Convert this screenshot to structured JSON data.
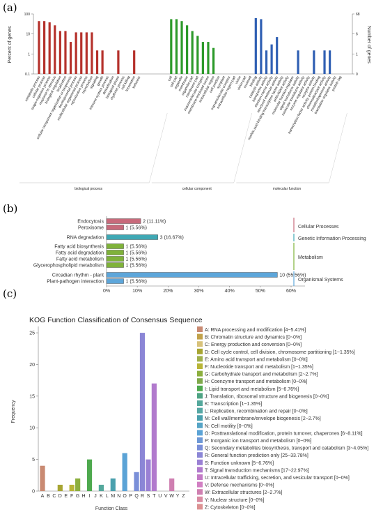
{
  "colors": {
    "biological_process": "#b5312b",
    "cellular_component": "#2c9a2a",
    "molecular_function": "#2f5fb3",
    "cellular_processes": "#c86a7b",
    "genetic_info": "#3fa8b4",
    "metabolism": "#7fb23a",
    "organismal": "#5da6da"
  },
  "chart_data": [
    {
      "id": "a",
      "panel_label": "(a)",
      "type": "bar",
      "ylabel_left": "Percent of genes",
      "ylabel_right": "Number of genes",
      "scale": "log",
      "left_ticks": [
        "100",
        "10",
        "1",
        "0.1"
      ],
      "right_ticks": [
        "68",
        "6",
        "1",
        "0"
      ],
      "ylim": [
        0.1,
        100
      ],
      "groups": [
        {
          "name": "biological process",
          "color_key": "biological_process",
          "start": 0,
          "end": 24
        },
        {
          "name": "cellular component",
          "color_key": "cellular_component",
          "start": 25,
          "end": 40
        },
        {
          "name": "molecular function",
          "color_key": "molecular_function",
          "start": 41,
          "end": 58
        }
      ],
      "categories": [
        "metabolic process",
        "cellular process",
        "single-organism process",
        "response to stimulus",
        "biological regulation",
        "localization",
        "cellular component organization or biogenesis",
        "developmental process",
        "multicellular organismal process",
        "reproductive process",
        "reproduction",
        "signaling",
        "growth",
        "immune system process",
        "detoxification",
        "biological phase",
        "rhythmic process",
        "cell killing",
        "locomotion",
        "behavior",
        "",
        "",
        "",
        "",
        "",
        "cell",
        "cell part",
        "organelle",
        "membrane",
        "organelle part",
        "membrane part",
        "macromolecular complex",
        "membrane-enclosed lumen",
        "extracellular region",
        "cell junction",
        "symplast",
        "supramolecular complex",
        "extracellular region part",
        "virion",
        "virion part",
        "nucleoid",
        "binding",
        "catalytic activity",
        "transporter activity",
        "electron carrier activity",
        "structural molecule activity",
        "nucleic acid binding transcription factor activity",
        "antioxidant activity",
        "molecular function regulator",
        "signal transducer activity",
        "molecular transducer activity",
        "enzyme regulator activity",
        "receptor activity",
        "transcription factor activity, protein binding",
        "chemoattractant activity",
        "metallochaperone activity",
        "translation regulator activity",
        "protein tag",
        ""
      ],
      "values": [
        44,
        44,
        38,
        27,
        14,
        14,
        4,
        12,
        12,
        12,
        12,
        1.5,
        1.5,
        0,
        0,
        1.5,
        0,
        0,
        1.5,
        0,
        0,
        0,
        0,
        0,
        0,
        55,
        55,
        44,
        27,
        14,
        8,
        4,
        4,
        2,
        0,
        0,
        0,
        0,
        0,
        0,
        0,
        62,
        55,
        1.5,
        3,
        7,
        0,
        0,
        0,
        1.5,
        0,
        0,
        1.5,
        0,
        1.5,
        1.5,
        0,
        0,
        0
      ]
    },
    {
      "id": "b",
      "panel_label": "(b)",
      "type": "bar",
      "orientation": "horizontal",
      "xlim": [
        0,
        60
      ],
      "x_ticks": [
        "0%",
        "10%",
        "20%",
        "30%",
        "40%",
        "50%",
        "60%"
      ],
      "categories": [
        {
          "label": "Endocytosis",
          "value": 2,
          "data_label": "2 (11.11%)",
          "percent": 11.11,
          "color_key": "cellular_processes"
        },
        {
          "label": "Peroxisome",
          "value": 1,
          "data_label": "1 (5.56%)",
          "percent": 5.56,
          "color_key": "cellular_processes"
        },
        {
          "label": "RNA degradation",
          "value": 3,
          "data_label": "3 (16.67%)",
          "percent": 16.67,
          "color_key": "genetic_info"
        },
        {
          "label": "Fatty acid biosynthesis",
          "value": 1,
          "data_label": "1 (5.56%)",
          "percent": 5.56,
          "color_key": "metabolism"
        },
        {
          "label": "Fatty acid degradation",
          "value": 1,
          "data_label": "1 (5.56%)",
          "percent": 5.56,
          "color_key": "metabolism"
        },
        {
          "label": "Fatty acid metabolism",
          "value": 1,
          "data_label": "1 (5.56%)",
          "percent": 5.56,
          "color_key": "metabolism"
        },
        {
          "label": "Glycerophospholipid metabolism",
          "value": 1,
          "data_label": "1 (5.56%)",
          "percent": 5.56,
          "color_key": "metabolism"
        },
        {
          "label": "Circadian rhythm - plant",
          "value": 10,
          "data_label": "10 (55.56%)",
          "percent": 55.56,
          "color_key": "organismal"
        },
        {
          "label": "Plant-pathogen interaction",
          "value": 1,
          "data_label": "1 (5.56%)",
          "percent": 5.56,
          "color_key": "organismal"
        }
      ],
      "class_labels": [
        {
          "label": "Cellular Processes",
          "color_key": "cellular_processes"
        },
        {
          "label": "Genetic Information Processing",
          "color_key": "genetic_info"
        },
        {
          "label": "Metabolism",
          "color_key": "metabolism"
        },
        {
          "label": "Organismal Systems",
          "color_key": "organismal"
        }
      ]
    },
    {
      "id": "c",
      "panel_label": "(c)",
      "type": "bar",
      "title": "KOG Function Classification of Consensus Sequence",
      "xlabel": "Function Class",
      "ylabel": "Frequency",
      "ylim": [
        0,
        26
      ],
      "y_ticks": [
        0,
        5,
        10,
        15,
        20,
        25
      ],
      "categories": [
        "A",
        "B",
        "C",
        "D",
        "E",
        "F",
        "G",
        "H",
        "I",
        "J",
        "K",
        "L",
        "M",
        "N",
        "O",
        "P",
        "Q",
        "R",
        "S",
        "T",
        "U",
        "V",
        "W",
        "Y",
        "Z"
      ],
      "values": [
        4,
        0,
        0,
        1,
        0,
        1,
        2,
        0,
        5,
        0,
        1,
        0,
        2,
        0,
        6,
        0,
        3,
        25,
        5,
        17,
        0,
        0,
        2,
        0,
        0
      ],
      "colors": [
        "#c98a72",
        "#c2a24a",
        "#d8c27a",
        "#a7a532",
        "#9fb04c",
        "#b8b536",
        "#8caf3e",
        "#7fa94a",
        "#4ea94e",
        "#4da383",
        "#54a89c",
        "#56a7a4",
        "#4aa0ad",
        "#56a4c6",
        "#5ba3d6",
        "#6d98d6",
        "#7a8fd8",
        "#8b86d6",
        "#9a80d4",
        "#b17acd",
        "#c37ac6",
        "#d27fc3",
        "#cf7fb1",
        "#d98ba2",
        "#dc9192"
      ],
      "legend": [
        "A: RNA processing and modification [4~5.41%]",
        "B: Chromatin structure and dynamics [0~0%]",
        "C: Energy production and conversion [0~0%]",
        "D: Cell cycle control, cell division, chromosome partitioning [1~1.35%]",
        "E: Amino acid transport and metabolism [0~0%]",
        "F: Nucleotide transport and metabolism [1~1.35%]",
        "G: Carbohydrate transport and metabolism [2~2.7%]",
        "H: Coenzyme transport and metabolism [0~0%]",
        "I: Lipid transport and metabolism [5~6.76%]",
        "J: Translation, ribosomal structure and biogenesis [0~0%]",
        "K: Transcription [1~1.35%]",
        "L: Replication, recombination and repair [0~0%]",
        "M: Cell wall/membrane/envelope biogenesis [2~2.7%]",
        "N: Cell motility [0~0%]",
        "O: Posttranslational modification, protein turnover, chaperones [6~8.11%]",
        "P: Inorganic ion transport and metabolism [0~0%]",
        "Q: Secondary metabolites biosynthesis, transport and catabolism [3~4.05%]",
        "R: General function prediction only [25~33.78%]",
        "S: Function unknown [5~6.76%]",
        "T: Signal transduction mechanisms [17~22.97%]",
        "U: Intracellular trafficking, secretion, and vesicular transport [0~0%]",
        "V: Defense mechanisms [0~0%]",
        "W: Extracellular structures [2~2.7%]",
        "Y: Nuclear structure [0~0%]",
        "Z: Cytoskeleton [0~0%]"
      ]
    }
  ]
}
